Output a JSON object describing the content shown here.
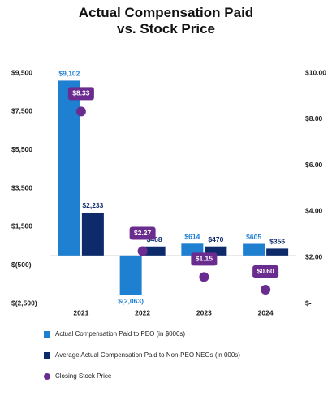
{
  "chart_data": {
    "type": "bar",
    "title": "Actual Compensation Paid vs. Stock Price",
    "categories": [
      "2021",
      "2022",
      "2023",
      "2024"
    ],
    "series": [
      {
        "name": "Actual Compensation Paid to PEO (in $000s)",
        "color": "#1f7fd1",
        "values": [
          9102,
          -2063,
          614,
          605
        ],
        "value_labels": [
          "$9,102",
          "$(2,063)",
          "$614",
          "$605"
        ]
      },
      {
        "name": "Average Actual Compensation Paid to Non-PEO NEOs (in 000s)",
        "color": "#0d2a6b",
        "values": [
          2233,
          468,
          470,
          356
        ],
        "value_labels": [
          "$2,233",
          "$468",
          "$470",
          "$356"
        ]
      },
      {
        "name": "Closing Stock Price",
        "type": "scatter",
        "axis": "y2",
        "color": "#6b2c8f",
        "values": [
          8.33,
          2.27,
          1.15,
          0.6
        ],
        "value_labels": [
          "$8.33",
          "$2.27",
          "$1.15",
          "$0.60"
        ]
      }
    ],
    "ylim": [
      -2500,
      9500
    ],
    "yticks": [
      {
        "value": 9500,
        "label": "$9,500"
      },
      {
        "value": 7500,
        "label": "$7,500"
      },
      {
        "value": 5500,
        "label": "$5,500"
      },
      {
        "value": 3500,
        "label": "$3,500"
      },
      {
        "value": 1500,
        "label": "$1,500"
      },
      {
        "value": -500,
        "label": "$(500)"
      },
      {
        "value": -2500,
        "label": "$(2,500)"
      }
    ],
    "y2lim": [
      0,
      10
    ],
    "y2ticks": [
      {
        "value": 10,
        "label": "$10.00"
      },
      {
        "value": 8,
        "label": "$8.00"
      },
      {
        "value": 6,
        "label": "$6.00"
      },
      {
        "value": 4,
        "label": "$4.00"
      },
      {
        "value": 2,
        "label": "$2.00"
      },
      {
        "value": 0,
        "label": "$-"
      }
    ],
    "grid": false,
    "legend": "bottom"
  }
}
